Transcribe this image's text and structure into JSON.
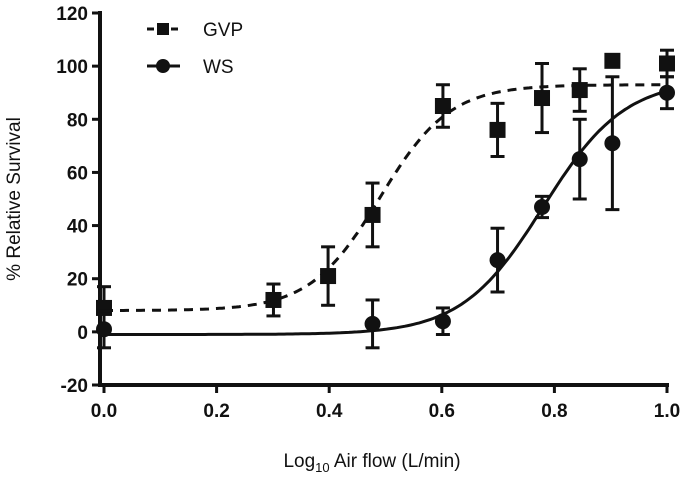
{
  "chart_data": {
    "type": "scatter",
    "title": "",
    "xlabel": {
      "prefix": "Log",
      "sub": "10",
      "suffix": " Air flow (L/min)"
    },
    "ylabel": "% Relative Survival",
    "xlim": [
      0,
      1.0
    ],
    "ylim": [
      -20,
      120
    ],
    "xticks": [
      "0.0",
      "0.2",
      "0.4",
      "0.6",
      "0.8",
      "1.0"
    ],
    "yticks": [
      "-20",
      "0",
      "20",
      "40",
      "60",
      "80",
      "100",
      "120"
    ],
    "grid": false,
    "legend_position": "top-left",
    "series": [
      {
        "name": "GVP",
        "marker": "square",
        "line": "dashed",
        "x": [
          0,
          0.301,
          0.398,
          0.477,
          0.602,
          0.699,
          0.778,
          0.845,
          0.903,
          1.0
        ],
        "y": [
          9,
          12,
          21,
          44,
          85,
          76,
          88,
          91,
          102,
          101
        ],
        "error": [
          8,
          6,
          11,
          12,
          8,
          10,
          13,
          8,
          2,
          5
        ],
        "fit": {
          "bottom": 8,
          "top": 93,
          "log_ec50": 0.49,
          "hill": 7
        }
      },
      {
        "name": "WS",
        "marker": "circle",
        "line": "solid",
        "x": [
          0,
          0.477,
          0.602,
          0.699,
          0.778,
          0.845,
          0.903,
          1.0
        ],
        "y": [
          1,
          3,
          4,
          27,
          47,
          65,
          71,
          90
        ],
        "error": [
          7,
          9,
          5,
          12,
          4,
          15,
          25,
          6
        ],
        "fit": {
          "bottom": -1,
          "top": 95,
          "log_ec50": 0.78,
          "hill": 6
        }
      }
    ]
  }
}
